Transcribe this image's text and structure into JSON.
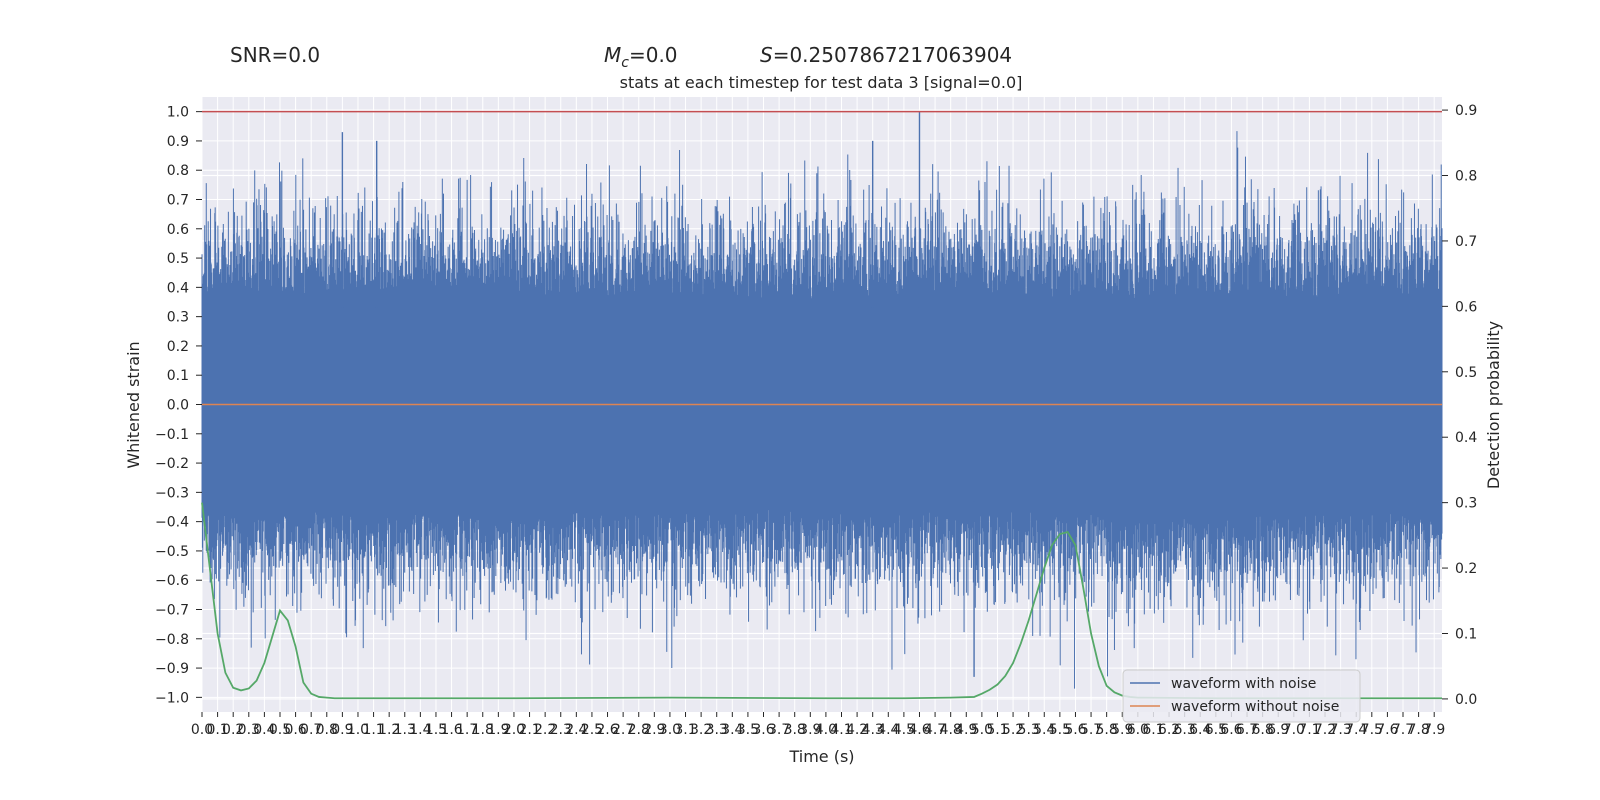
{
  "header": {
    "snr": "SNR=0.0",
    "mc_symbol": "M",
    "mc_sub": "c",
    "mc_value": "=0.0",
    "s_symbol": "S",
    "s_value": "=0.2507867217063904"
  },
  "chart_data": {
    "type": "line",
    "title": "stats at each timestep for test data 3 [signal=0.0]",
    "xlabel": "Time (s)",
    "ylabel": "Whitened strain",
    "y2label": "Detection probability",
    "xlim": [
      0.0,
      7.95
    ],
    "ylim": [
      -1.05,
      1.05
    ],
    "y2lim": [
      -0.02,
      0.92
    ],
    "x_ticks": [
      0.0,
      0.1,
      0.2,
      0.3,
      0.4,
      0.5,
      0.6,
      0.7,
      0.8,
      0.9,
      1.0,
      1.1,
      1.2,
      1.3,
      1.4,
      1.5,
      1.6,
      1.7,
      1.8,
      1.9,
      2.0,
      2.1,
      2.2,
      2.3,
      2.4,
      2.5,
      2.6,
      2.7,
      2.8,
      2.9,
      3.0,
      3.1,
      3.2,
      3.3,
      3.4,
      3.5,
      3.6,
      3.7,
      3.8,
      3.9,
      4.0,
      4.1,
      4.2,
      4.3,
      4.4,
      4.5,
      4.6,
      4.7,
      4.8,
      4.9,
      5.0,
      5.1,
      5.2,
      5.3,
      5.4,
      5.5,
      5.6,
      5.7,
      5.8,
      5.9,
      6.0,
      6.1,
      6.2,
      6.3,
      6.4,
      6.5,
      6.6,
      6.7,
      6.8,
      6.9,
      7.0,
      7.1,
      7.2,
      7.3,
      7.4,
      7.5,
      7.6,
      7.7,
      7.8,
      7.9
    ],
    "y_ticks": [
      1.0,
      0.9,
      0.8,
      0.7,
      0.6,
      0.5,
      0.4,
      0.3,
      0.2,
      0.1,
      0.0,
      -0.1,
      -0.2,
      -0.3,
      -0.4,
      -0.5,
      -0.6,
      -0.7,
      -0.8,
      -0.9,
      -1.0
    ],
    "y2_ticks": [
      0.9,
      0.8,
      0.7,
      0.6,
      0.5,
      0.4,
      0.3,
      0.2,
      0.1,
      0.0
    ],
    "grid": true,
    "legend_position": "lower-right",
    "threshold": {
      "y": 1.0,
      "color": "#c44e52"
    },
    "colors": {
      "noise": "#4c72b0",
      "clean": "#dd8452",
      "prob": "#55a868",
      "background": "#eaeaf2",
      "grid": "#ffffff"
    },
    "series": [
      {
        "name": "waveform with noise",
        "noise_amplitude_typical": 0.5,
        "peaks_approx": [
          0.93,
          0.9,
          0.9,
          1.0,
          -0.93
        ]
      },
      {
        "name": "waveform without noise",
        "constant": 0.0
      }
    ],
    "probability": {
      "x": [
        0.0,
        0.05,
        0.1,
        0.15,
        0.2,
        0.25,
        0.3,
        0.35,
        0.4,
        0.45,
        0.5,
        0.55,
        0.6,
        0.65,
        0.7,
        0.75,
        0.8,
        0.85,
        0.9,
        1.0,
        1.5,
        2.0,
        3.0,
        4.0,
        4.5,
        4.8,
        4.95,
        5.0,
        5.05,
        5.1,
        5.15,
        5.2,
        5.25,
        5.3,
        5.35,
        5.4,
        5.45,
        5.5,
        5.55,
        5.6,
        5.65,
        5.7,
        5.75,
        5.8,
        5.85,
        5.9,
        5.95,
        6.0,
        6.5,
        7.0,
        7.5,
        7.95
      ],
      "y": [
        0.3,
        0.2,
        0.1,
        0.04,
        0.017,
        0.013,
        0.016,
        0.028,
        0.055,
        0.095,
        0.135,
        0.12,
        0.08,
        0.025,
        0.008,
        0.003,
        0.002,
        0.001,
        0.001,
        0.001,
        0.001,
        0.001,
        0.002,
        0.001,
        0.001,
        0.002,
        0.003,
        0.008,
        0.014,
        0.022,
        0.035,
        0.055,
        0.085,
        0.12,
        0.16,
        0.2,
        0.235,
        0.252,
        0.255,
        0.235,
        0.17,
        0.1,
        0.05,
        0.02,
        0.01,
        0.005,
        0.003,
        0.002,
        0.001,
        0.001,
        0.001,
        0.001
      ]
    }
  }
}
